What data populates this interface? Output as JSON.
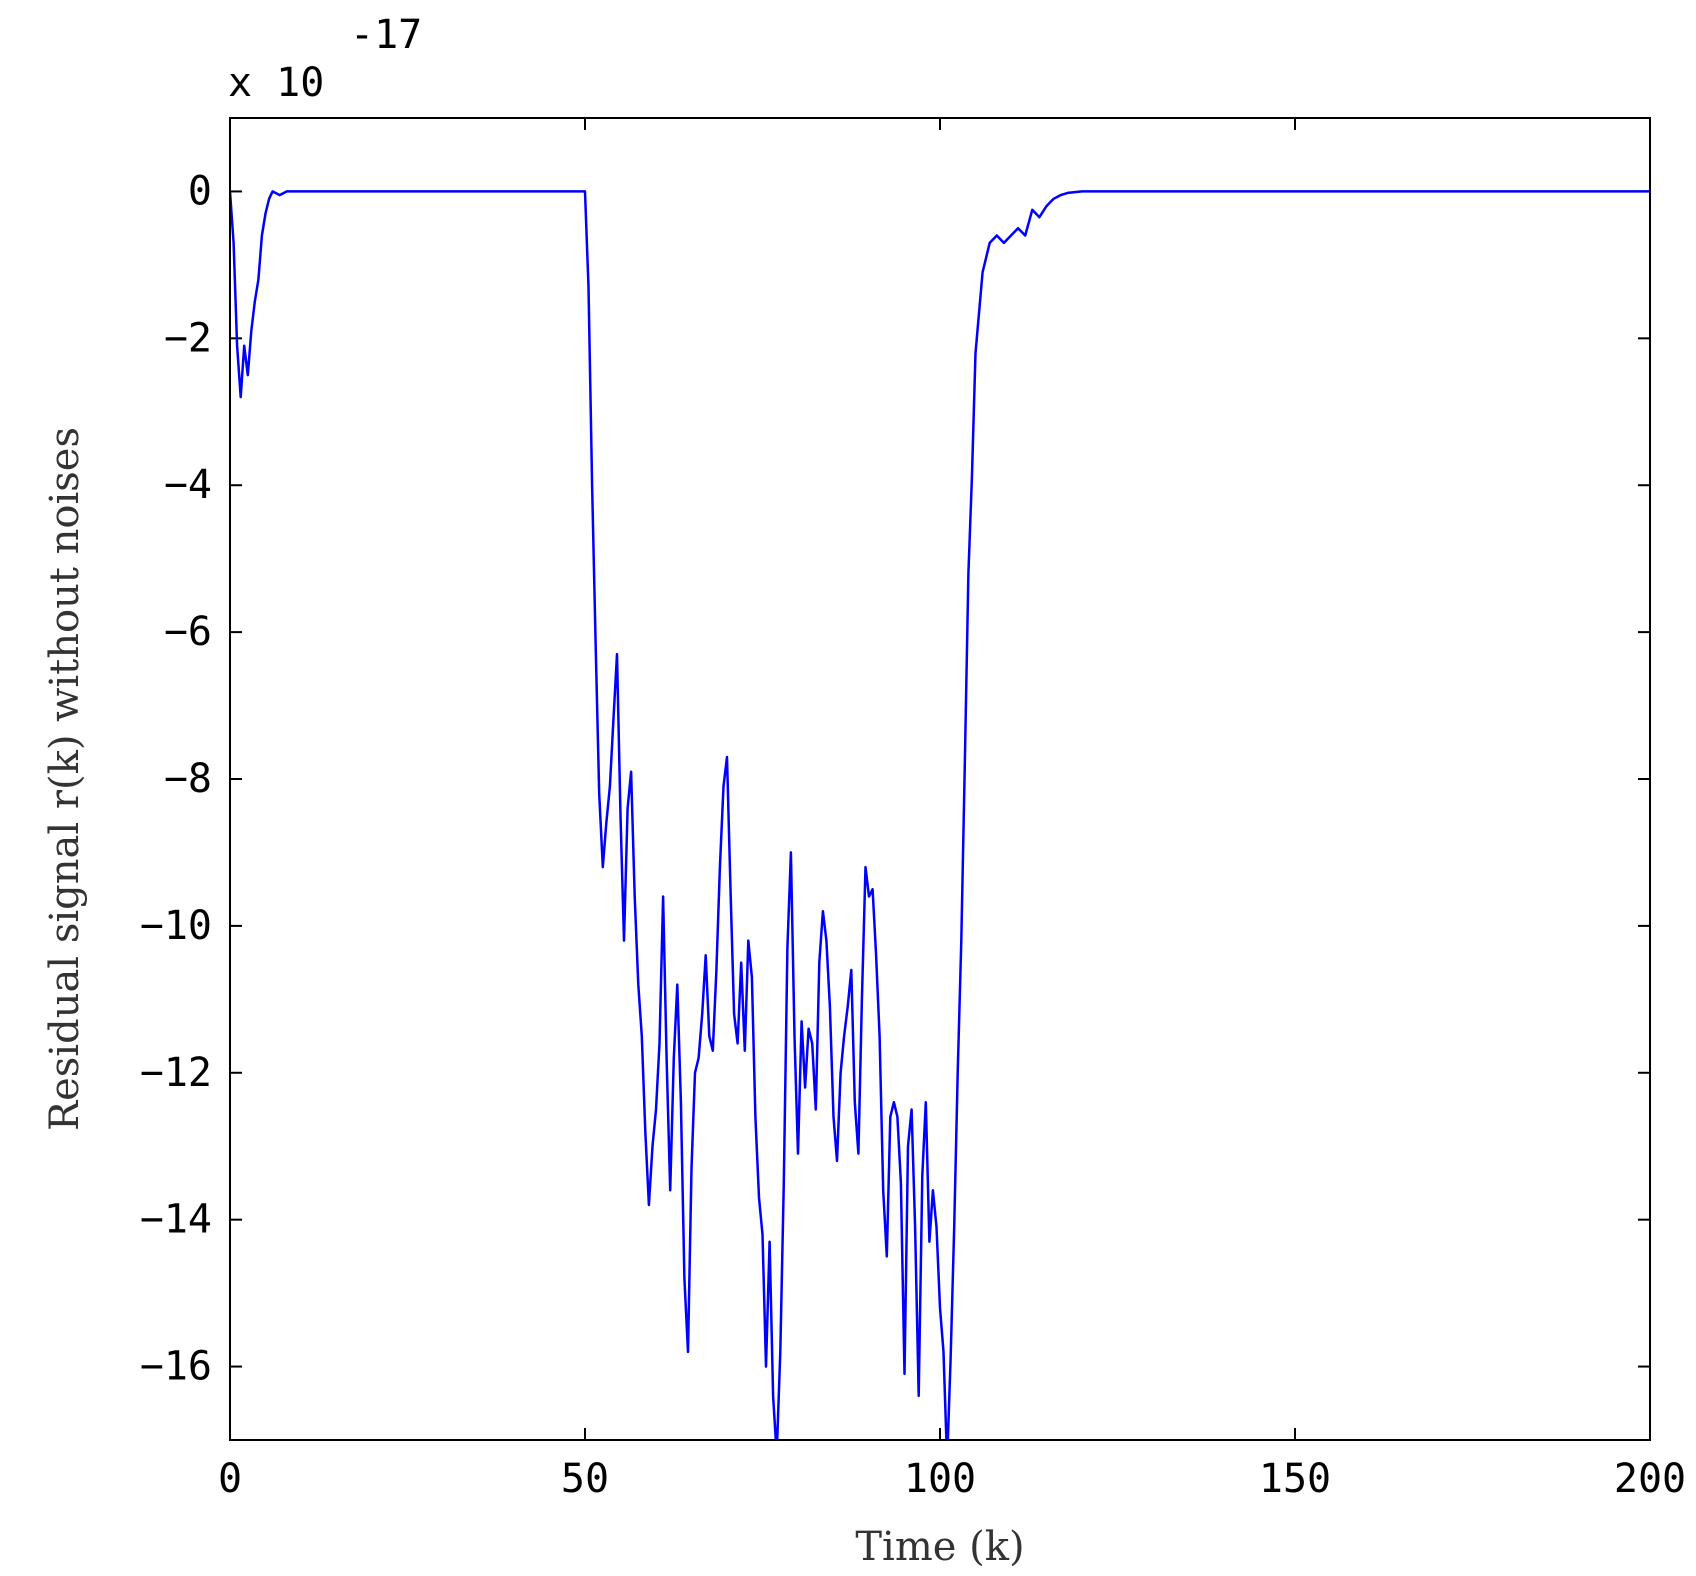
{
  "chart_data": {
    "type": "line",
    "title": "",
    "xlabel": "Time (k)",
    "ylabel": "Residual signal r(k) without noises",
    "y_exponent": {
      "base": "x 10",
      "power": "-17"
    },
    "xlim": [
      0,
      200
    ],
    "ylim": [
      -17,
      1
    ],
    "xticks": [
      0,
      50,
      100,
      150,
      200
    ],
    "xtick_labels": [
      "0",
      "50",
      "100",
      "150",
      "200"
    ],
    "yticks": [
      0,
      -2,
      -4,
      -6,
      -8,
      -10,
      -12,
      -14,
      -16
    ],
    "ytick_labels": [
      "0",
      "−2",
      "−4",
      "−6",
      "−8",
      "−10",
      "−12",
      "−14",
      "−16"
    ],
    "grid": false,
    "line_color": "#0000ff",
    "series": [
      {
        "x": [
          0,
          0.5,
          1,
          1.5,
          2,
          2.5,
          3,
          3.5,
          4,
          4.5,
          5,
          5.5,
          6,
          7,
          8,
          9,
          10,
          20,
          30,
          40,
          49,
          50,
          50.5,
          51,
          51.5,
          52,
          52.5,
          53,
          53.5,
          54,
          54.5,
          55,
          55.5,
          56,
          56.5,
          57,
          57.5,
          58,
          58.5,
          59,
          59.5,
          60,
          60.5,
          61,
          61.5,
          62,
          62.5,
          63,
          63.5,
          64,
          64.5,
          65,
          65.5,
          66,
          66.5,
          67,
          67.5,
          68,
          68.5,
          69,
          69.5,
          70,
          70.5,
          71,
          71.5,
          72,
          72.5,
          73,
          73.5,
          74,
          74.5,
          75,
          75.5,
          76,
          76.5,
          77,
          77.5,
          78,
          78.5,
          79,
          79.5,
          80,
          80.5,
          81,
          81.5,
          82,
          82.5,
          83,
          83.5,
          84,
          84.5,
          85,
          85.5,
          86,
          86.5,
          87,
          87.5,
          88,
          88.5,
          89,
          89.5,
          90,
          90.5,
          91,
          91.5,
          92,
          92.5,
          93,
          93.5,
          94,
          94.5,
          95,
          95.5,
          96,
          96.5,
          97,
          97.5,
          98,
          98.5,
          99,
          99.5,
          100,
          100.5,
          101,
          101.5,
          102,
          102.5,
          103,
          103.5,
          104,
          104.5,
          105,
          106,
          107,
          108,
          109,
          110,
          111,
          112,
          113,
          114,
          115,
          116,
          117,
          118,
          120,
          130,
          150,
          170,
          200
        ],
        "y": [
          0,
          -0.7,
          -2.1,
          -2.8,
          -2.1,
          -2.5,
          -1.9,
          -1.5,
          -1.2,
          -0.6,
          -0.3,
          -0.1,
          0,
          -0.05,
          0,
          0,
          0,
          0,
          0,
          0,
          0,
          0,
          -1.3,
          -4,
          -6.2,
          -8.2,
          -9.2,
          -8.6,
          -8.1,
          -7.2,
          -6.3,
          -8.5,
          -10.2,
          -8.4,
          -7.9,
          -9.6,
          -10.8,
          -11.5,
          -12.8,
          -13.8,
          -13,
          -12.5,
          -11.6,
          -9.6,
          -11.8,
          -13.6,
          -11.8,
          -10.8,
          -12.4,
          -14.8,
          -15.8,
          -13.3,
          -12,
          -11.8,
          -11.2,
          -10.4,
          -11.5,
          -11.7,
          -10.6,
          -9.2,
          -8.1,
          -7.7,
          -9.5,
          -11.2,
          -11.6,
          -10.5,
          -11.7,
          -10.2,
          -10.7,
          -12.6,
          -13.7,
          -14.2,
          -16,
          -14.3,
          -16.4,
          -17.2,
          -15.8,
          -13.5,
          -10.3,
          -9,
          -11.5,
          -13.1,
          -11.3,
          -12.2,
          -11.4,
          -11.6,
          -12.5,
          -10.5,
          -9.8,
          -10.2,
          -11.1,
          -12.6,
          -13.2,
          -12,
          -11.5,
          -11.1,
          -10.6,
          -12.4,
          -13.1,
          -11,
          -9.2,
          -9.6,
          -9.5,
          -10.4,
          -11.5,
          -13.6,
          -14.5,
          -12.6,
          -12.4,
          -12.6,
          -13.5,
          -16.1,
          -13,
          -12.5,
          -14.1,
          -16.4,
          -13.4,
          -12.4,
          -14.3,
          -13.6,
          -14.1,
          -15.2,
          -15.8,
          -17.3,
          -15.9,
          -14.1,
          -12,
          -10.2,
          -7.8,
          -5.2,
          -3.9,
          -2.2,
          -1.1,
          -0.7,
          -0.6,
          -0.7,
          -0.6,
          -0.5,
          -0.6,
          -0.25,
          -0.35,
          -0.2,
          -0.1,
          -0.05,
          -0.02,
          0,
          0,
          0,
          0,
          0
        ]
      }
    ]
  }
}
